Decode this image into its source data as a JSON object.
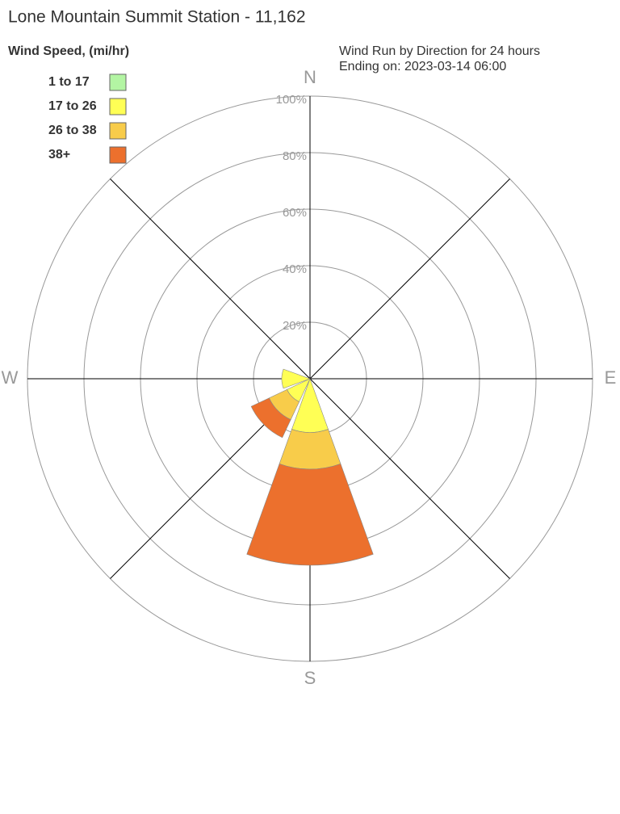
{
  "chart_data": {
    "type": "windrose",
    "title": "Lone Mountain Summit Station - 11,162",
    "legend_title": "Wind Speed, (mi/hr)",
    "subtitle": [
      "Wind Run by Direction for 24 hours",
      "Ending on: 2023-03-14 06:00"
    ],
    "categories": [
      "N",
      null,
      "E",
      null,
      "S",
      null,
      "W",
      null
    ],
    "series": [
      {
        "name": "1 to 17",
        "color": "#b3f5a3",
        "values": [
          0,
          0,
          0,
          0,
          0,
          0,
          0,
          0
        ]
      },
      {
        "name": "17 to 26",
        "color": "#ffff55",
        "values": [
          0,
          0,
          0,
          0,
          19,
          9,
          10,
          0
        ]
      },
      {
        "name": "26 to 38",
        "color": "#f8cc4a",
        "values": [
          0,
          0,
          0,
          0,
          13,
          7,
          0,
          0
        ]
      },
      {
        "name": "38+",
        "color": "#ec702d",
        "values": [
          0,
          0,
          0,
          0,
          34,
          7,
          0,
          0
        ]
      }
    ],
    "rlim": [
      0,
      100
    ],
    "rticks": [
      {
        "value": 20,
        "label": "20%"
      },
      {
        "value": 40,
        "label": "40%"
      },
      {
        "value": 60,
        "label": "60%"
      },
      {
        "value": 80,
        "label": "80%"
      },
      {
        "value": 100,
        "label": "100%"
      }
    ],
    "legend": "top-left"
  }
}
